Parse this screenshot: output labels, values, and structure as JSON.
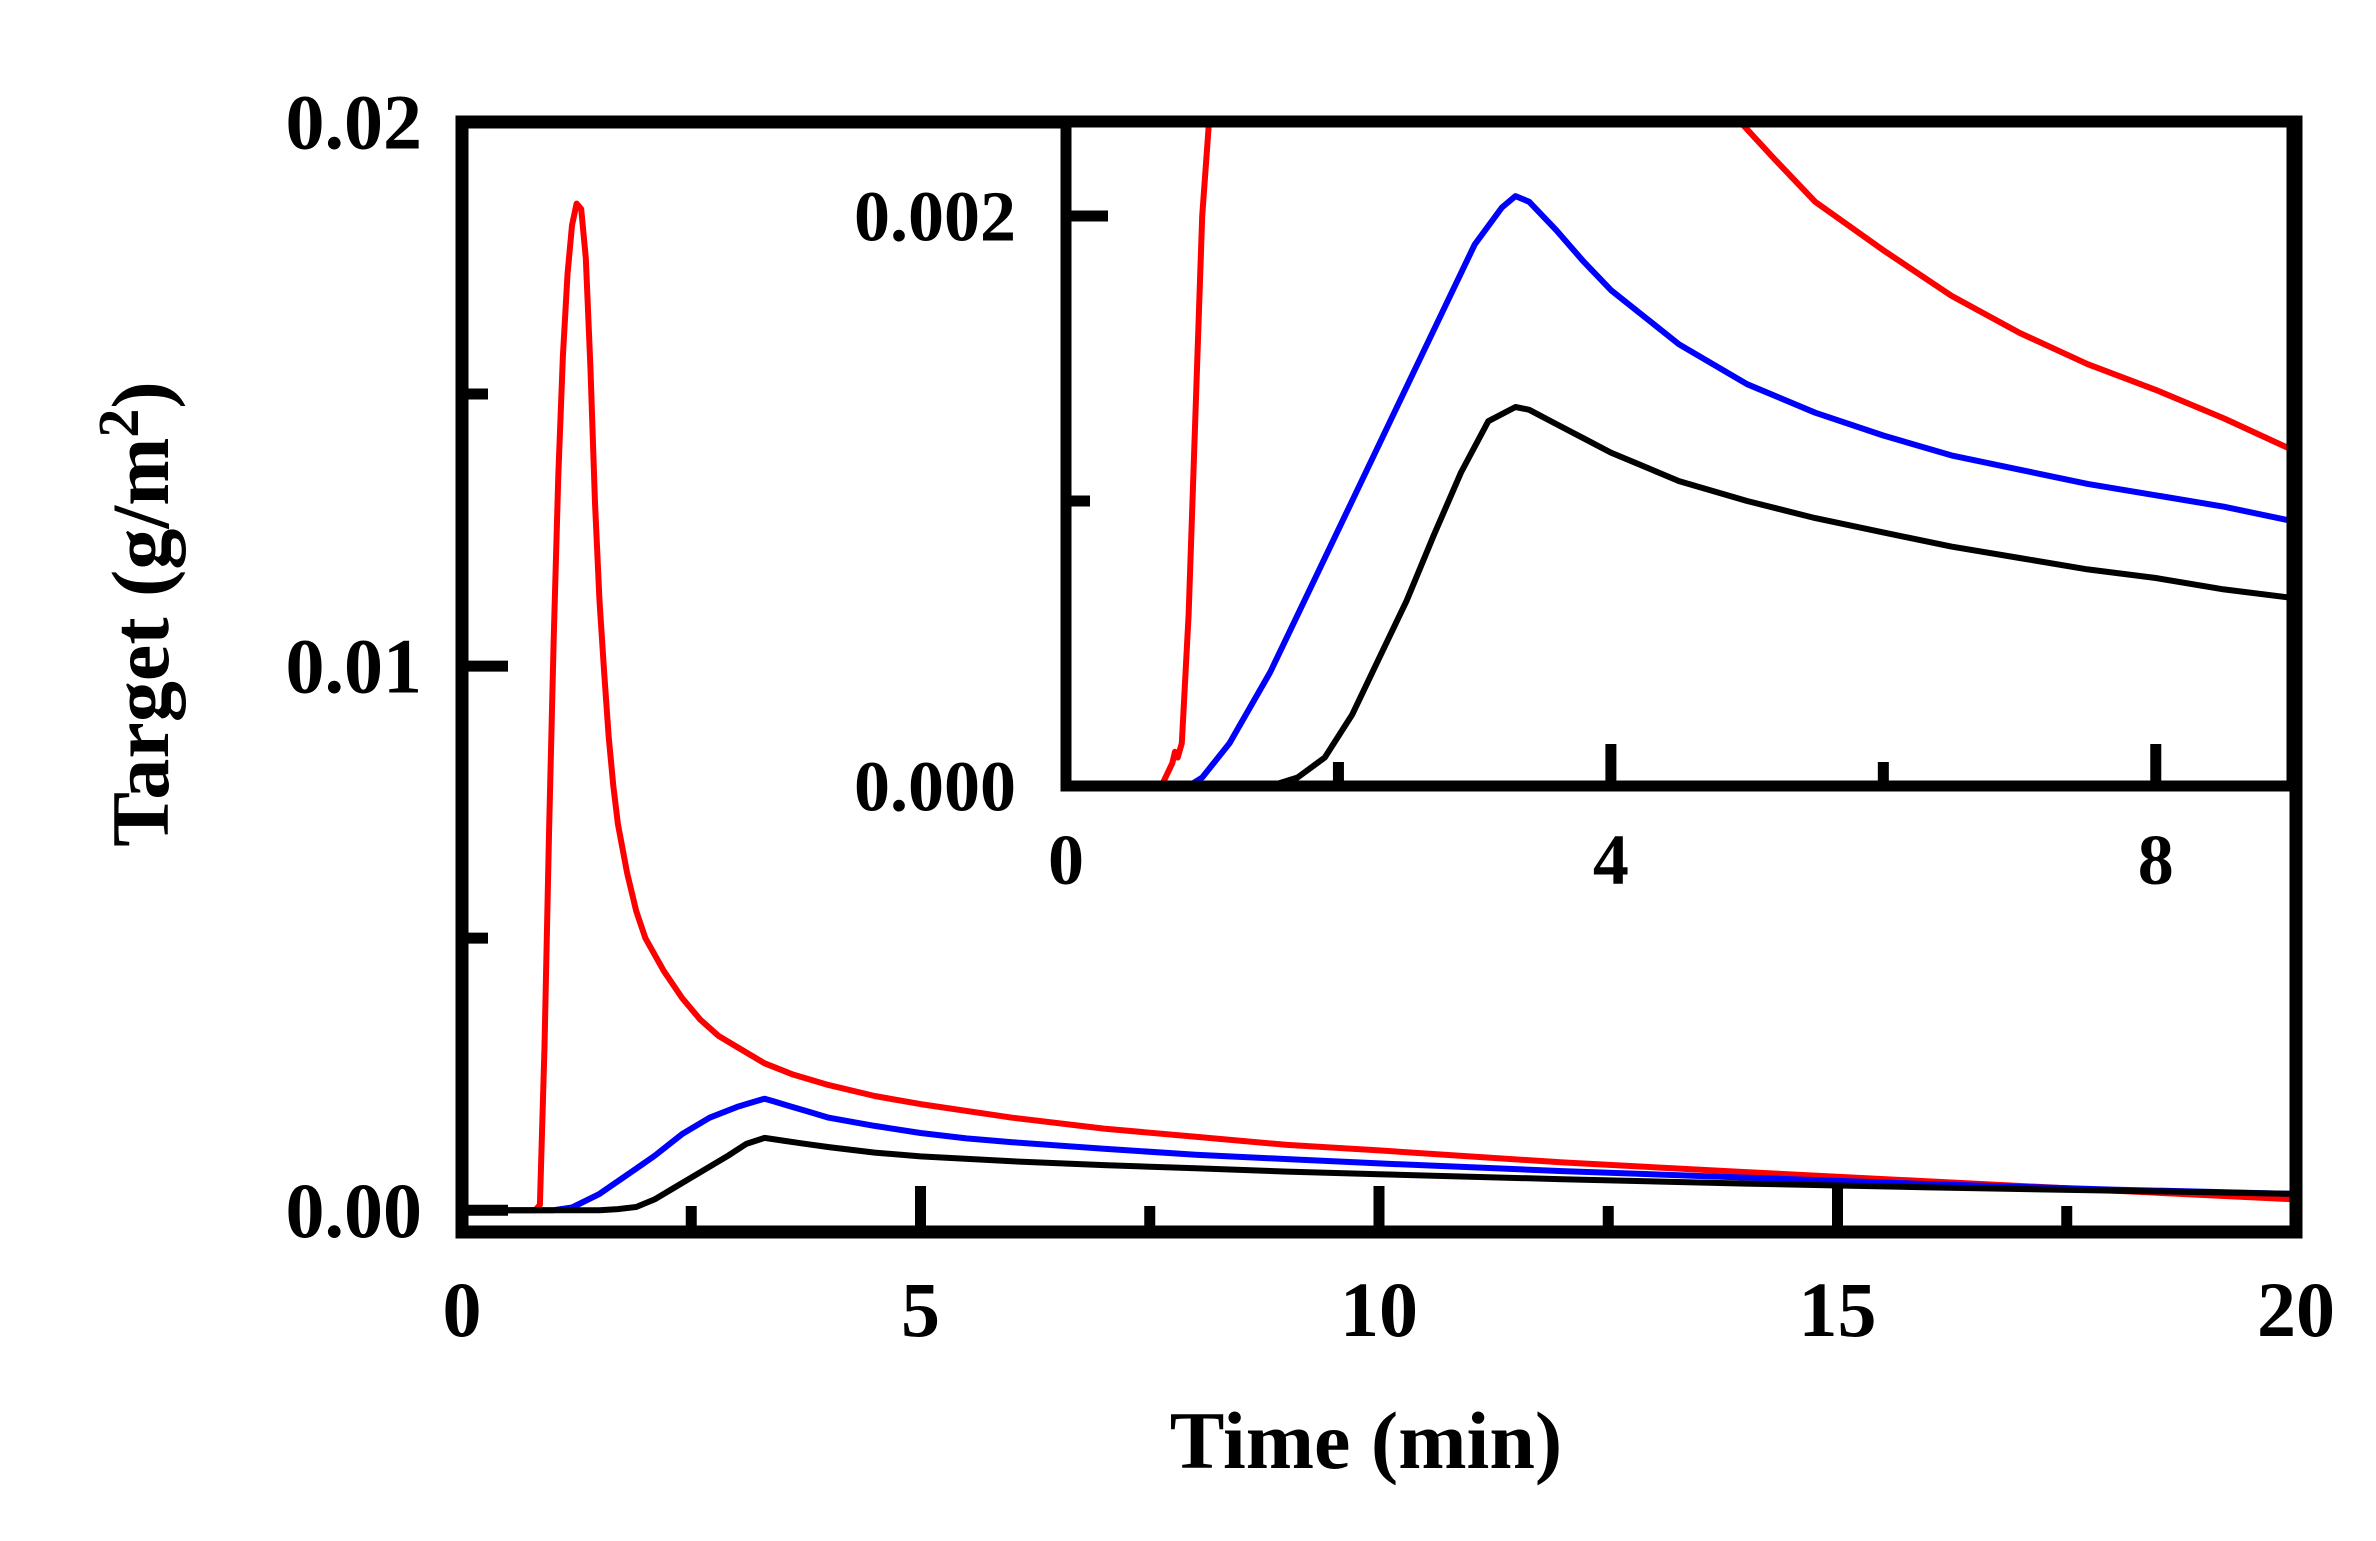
{
  "chart_data": [
    {
      "id": "main",
      "type": "line",
      "xlabel": "Time (min)",
      "ylabel": "Target (g/m",
      "ylabel_sup": "2",
      "ylabel_close": ")",
      "xlim": [
        0,
        20
      ],
      "ylim": [
        -0.0004,
        0.02
      ],
      "xticks_major": [
        0,
        5,
        10,
        15,
        20
      ],
      "xtick_labels": [
        "0",
        "5",
        "10",
        "15",
        "20"
      ],
      "xticks_minor": [
        2.5,
        7.5,
        12.5,
        17.5
      ],
      "yticks_major": [
        0.0,
        0.01,
        0.02
      ],
      "ytick_labels": [
        "0.00",
        "0.01",
        "0.02"
      ],
      "yticks_minor": [
        0.005,
        0.015
      ],
      "series": [
        {
          "name": "red",
          "color": "#ff0000",
          "x": [
            0,
            0.8,
            0.85,
            0.9,
            0.95,
            1.0,
            1.05,
            1.1,
            1.15,
            1.2,
            1.25,
            1.3,
            1.35,
            1.4,
            1.45,
            1.5,
            1.55,
            1.6,
            1.65,
            1.7,
            1.8,
            1.9,
            2.0,
            2.2,
            2.4,
            2.6,
            2.8,
            3.0,
            3.3,
            3.6,
            4.0,
            4.5,
            5.0,
            6.0,
            7.0,
            8.0,
            9.0,
            10.0,
            12.0,
            14.0,
            16.0,
            18.0,
            20.0
          ],
          "y": [
            0,
            0,
            0.0001,
            0.003,
            0.007,
            0.0105,
            0.0135,
            0.0157,
            0.0172,
            0.0181,
            0.0185,
            0.0184,
            0.0175,
            0.0155,
            0.013,
            0.0112,
            0.0099,
            0.0087,
            0.0078,
            0.0071,
            0.0062,
            0.0055,
            0.005,
            0.0044,
            0.0039,
            0.0035,
            0.0032,
            0.003,
            0.0027,
            0.0025,
            0.0023,
            0.0021,
            0.00195,
            0.0017,
            0.0015,
            0.00135,
            0.0012,
            0.0011,
            0.00088,
            0.0007,
            0.00053,
            0.00036,
            0.0002
          ]
        },
        {
          "name": "blue",
          "color": "#0000ff",
          "x": [
            0,
            1.0,
            1.2,
            1.5,
            1.8,
            2.1,
            2.4,
            2.7,
            3.0,
            3.2,
            3.3,
            3.4,
            3.6,
            3.8,
            4.0,
            4.5,
            5.0,
            5.5,
            6.0,
            7.0,
            8.0,
            9.0,
            10.0,
            12.0,
            14.0,
            16.0,
            18.0,
            20.0
          ],
          "y": [
            0,
            0,
            5e-05,
            0.0003,
            0.00065,
            0.001,
            0.0014,
            0.0017,
            0.0019,
            0.002,
            0.00205,
            0.002,
            0.0019,
            0.0018,
            0.0017,
            0.00155,
            0.00142,
            0.00132,
            0.00125,
            0.00113,
            0.00102,
            0.00094,
            0.00086,
            0.00072,
            0.0006,
            0.00048,
            0.00038,
            0.0003
          ]
        },
        {
          "name": "black",
          "color": "#000000",
          "x": [
            0,
            1.5,
            1.7,
            1.9,
            2.1,
            2.3,
            2.5,
            2.7,
            2.9,
            3.1,
            3.3,
            3.5,
            3.7,
            4.0,
            4.5,
            5.0,
            6.0,
            7.0,
            8.0,
            9.0,
            10.0,
            12.0,
            14.0,
            16.0,
            18.0,
            20.0
          ],
          "y": [
            0,
            0,
            2e-05,
            6e-05,
            0.0002,
            0.0004,
            0.0006,
            0.0008,
            0.001,
            0.00122,
            0.00133,
            0.00128,
            0.00123,
            0.00116,
            0.00106,
            0.00099,
            0.0009,
            0.00083,
            0.00077,
            0.00071,
            0.00066,
            0.00057,
            0.00049,
            0.00042,
            0.00036,
            0.0003
          ]
        }
      ]
    },
    {
      "id": "inset",
      "type": "line",
      "xlim": [
        0,
        9
      ],
      "ylim": [
        0,
        0.00233
      ],
      "xticks_major": [
        0,
        4,
        8
      ],
      "xtick_labels": [
        "0",
        "4",
        "8"
      ],
      "xticks_minor": [
        2,
        6
      ],
      "yticks_major": [
        0.0,
        0.002
      ],
      "ytick_labels": [
        "0.000",
        "0.002"
      ],
      "yticks_minor": [
        0.001
      ],
      "series": [
        {
          "name": "red",
          "color": "#ff0000",
          "x": [
            0,
            0.7,
            0.75,
            0.78,
            0.8,
            0.82,
            0.85,
            0.9,
            1.0,
            1.05
          ],
          "y": [
            0,
            0,
            5e-05,
            8e-05,
            0.00012,
            0.0001,
            0.00015,
            0.0006,
            0.002,
            0.00233
          ],
          "x2": [
            4.95,
            5.2,
            5.5,
            6.0,
            6.5,
            7.0,
            7.5,
            8.0,
            8.5,
            9.0
          ],
          "y2": [
            0.00233,
            0.0022,
            0.00205,
            0.00188,
            0.00172,
            0.00159,
            0.00148,
            0.00139,
            0.00129,
            0.00118
          ]
        },
        {
          "name": "blue",
          "color": "#0000ff",
          "x": [
            0,
            0.9,
            1.0,
            1.2,
            1.5,
            1.8,
            2.1,
            2.4,
            2.7,
            3.0,
            3.2,
            3.3,
            3.4,
            3.6,
            3.8,
            4.0,
            4.5,
            5.0,
            5.5,
            6.0,
            6.5,
            7.0,
            7.5,
            8.0,
            8.5,
            9.0
          ],
          "y": [
            0,
            0,
            3e-05,
            0.00015,
            0.0004,
            0.0007,
            0.001,
            0.0013,
            0.0016,
            0.0019,
            0.00203,
            0.00207,
            0.00205,
            0.00195,
            0.00184,
            0.00174,
            0.00155,
            0.00141,
            0.00131,
            0.00123,
            0.00116,
            0.00111,
            0.00106,
            0.00102,
            0.00098,
            0.00093
          ]
        },
        {
          "name": "black",
          "color": "#000000",
          "x": [
            0,
            1.5,
            1.7,
            1.9,
            2.1,
            2.3,
            2.5,
            2.7,
            2.9,
            3.1,
            3.3,
            3.4,
            3.6,
            3.8,
            4.0,
            4.5,
            5.0,
            5.5,
            6.0,
            6.5,
            7.0,
            7.5,
            8.0,
            8.5,
            9.0
          ],
          "y": [
            0,
            0,
            3e-05,
            0.0001,
            0.00025,
            0.00045,
            0.00065,
            0.00088,
            0.0011,
            0.00128,
            0.00133,
            0.00132,
            0.00127,
            0.00122,
            0.00117,
            0.00107,
            0.001,
            0.00094,
            0.00089,
            0.00084,
            0.0008,
            0.00076,
            0.00073,
            0.00069,
            0.00066
          ]
        }
      ]
    }
  ]
}
